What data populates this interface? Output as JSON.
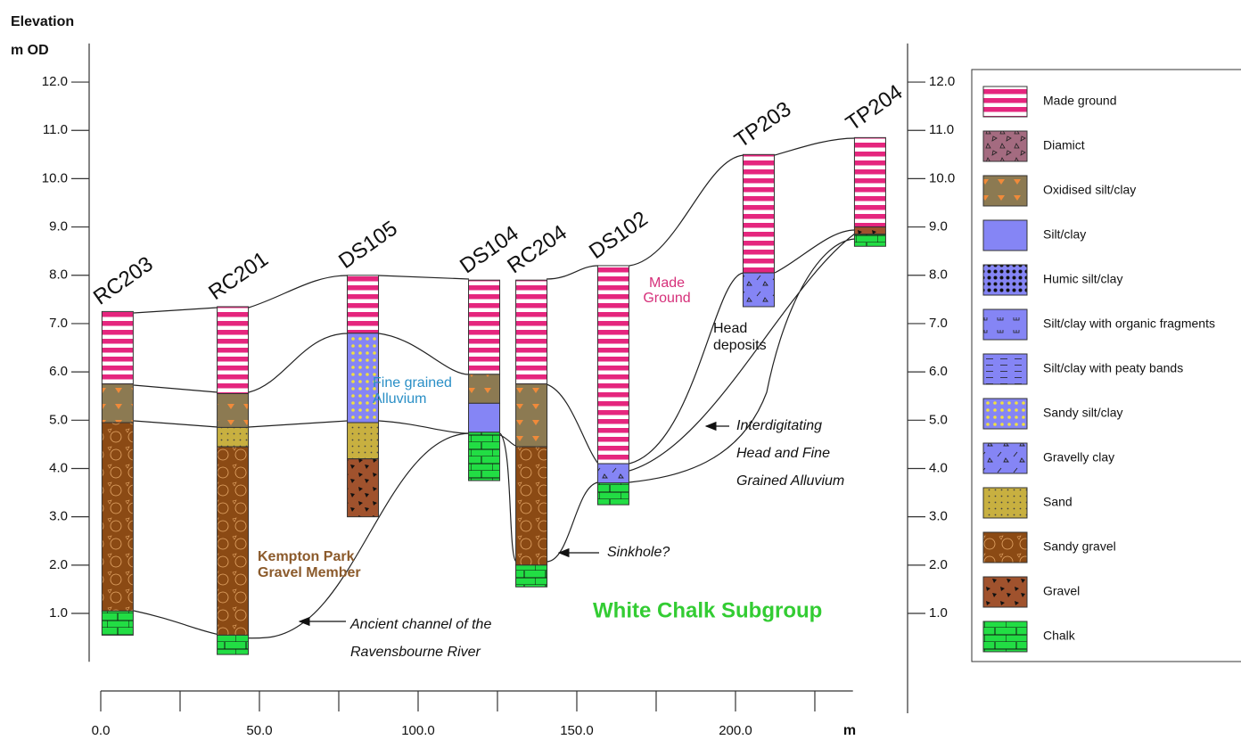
{
  "axis": {
    "y_title": "Elevation",
    "y_unit": "m OD",
    "x_unit": "m",
    "ylim": [
      0,
      12.8
    ],
    "yticks": [
      {
        "value": 1,
        "label": "1.0"
      },
      {
        "value": 2,
        "label": "2.0"
      },
      {
        "value": 3,
        "label": "3.0"
      },
      {
        "value": 4,
        "label": "4.0"
      },
      {
        "value": 5,
        "label": "5.0"
      },
      {
        "value": 6,
        "label": "6.0"
      },
      {
        "value": 7,
        "label": "7.0"
      },
      {
        "value": 8,
        "label": "8.0"
      },
      {
        "value": 9,
        "label": "9.0"
      },
      {
        "value": 10,
        "label": "10.0"
      },
      {
        "value": 11,
        "label": "11.0"
      },
      {
        "value": 12,
        "label": "12.0"
      }
    ],
    "xlim": [
      0,
      237
    ],
    "xticks": [
      {
        "value": 0,
        "label": "0.0"
      },
      {
        "value": 50,
        "label": "50.0"
      },
      {
        "value": 100,
        "label": "100.0"
      },
      {
        "value": 150,
        "label": "150.0"
      },
      {
        "value": 200,
        "label": "200.0"
      }
    ],
    "xminor": [
      25,
      75,
      125,
      175,
      225
    ]
  },
  "boreholes": [
    {
      "name": "RC203",
      "x": 5.3,
      "layers": [
        {
          "top": 7.25,
          "bottom": 5.75,
          "material": "Made ground"
        },
        {
          "top": 5.75,
          "bottom": 4.95,
          "material": "Oxidised silt/clay"
        },
        {
          "top": 4.95,
          "bottom": 1.05,
          "material": "Sandy gravel"
        },
        {
          "top": 1.05,
          "bottom": 0.55,
          "material": "Chalk"
        }
      ]
    },
    {
      "name": "RC201",
      "x": 41.6,
      "layers": [
        {
          "top": 7.35,
          "bottom": 5.55,
          "material": "Made ground"
        },
        {
          "top": 5.55,
          "bottom": 4.85,
          "material": "Oxidised silt/clay"
        },
        {
          "top": 4.85,
          "bottom": 4.45,
          "material": "Sand"
        },
        {
          "top": 4.45,
          "bottom": 0.55,
          "material": "Sandy gravel"
        },
        {
          "top": 0.55,
          "bottom": 0.15,
          "material": "Chalk"
        }
      ]
    },
    {
      "name": "DS105",
      "x": 82.6,
      "layers": [
        {
          "top": 8.0,
          "bottom": 6.8,
          "material": "Made ground"
        },
        {
          "top": 6.8,
          "bottom": 4.95,
          "material": "Sandy silt/clay"
        },
        {
          "top": 4.95,
          "bottom": 4.2,
          "material": "Sand"
        },
        {
          "top": 4.2,
          "bottom": 3.0,
          "material": "Gravel"
        }
      ]
    },
    {
      "name": "DS104",
      "x": 120.8,
      "layers": [
        {
          "top": 7.9,
          "bottom": 5.95,
          "material": "Made ground"
        },
        {
          "top": 5.95,
          "bottom": 5.35,
          "material": "Oxidised silt/clay"
        },
        {
          "top": 5.35,
          "bottom": 4.75,
          "material": "Silt/clay"
        },
        {
          "top": 4.75,
          "bottom": 3.75,
          "material": "Chalk"
        }
      ]
    },
    {
      "name": "RC204",
      "x": 135.7,
      "layers": [
        {
          "top": 7.9,
          "bottom": 5.75,
          "material": "Made ground"
        },
        {
          "top": 5.75,
          "bottom": 4.45,
          "material": "Oxidised silt/clay"
        },
        {
          "top": 4.45,
          "bottom": 2.0,
          "material": "Sandy gravel"
        },
        {
          "top": 2.0,
          "bottom": 1.55,
          "material": "Chalk"
        }
      ]
    },
    {
      "name": "DS102",
      "x": 161.5,
      "layers": [
        {
          "top": 8.2,
          "bottom": 4.1,
          "material": "Made ground"
        },
        {
          "top": 4.1,
          "bottom": 3.7,
          "material": "Gravelly clay"
        },
        {
          "top": 3.7,
          "bottom": 3.25,
          "material": "Chalk"
        }
      ]
    },
    {
      "name": "TP203",
      "x": 207.3,
      "layers": [
        {
          "top": 10.5,
          "bottom": 8.05,
          "material": "Made ground"
        },
        {
          "top": 8.05,
          "bottom": 7.35,
          "material": "Gravelly clay"
        }
      ]
    },
    {
      "name": "TP204",
      "x": 242.4,
      "layers": [
        {
          "top": 10.85,
          "bottom": 9.0,
          "material": "Made ground"
        },
        {
          "top": 9.0,
          "bottom": 8.85,
          "material": "Gravel"
        },
        {
          "top": 8.85,
          "bottom": 8.6,
          "material": "Chalk"
        }
      ]
    }
  ],
  "annotations": {
    "made_ground": [
      "Made",
      "Ground"
    ],
    "head": [
      "Head",
      "deposits"
    ],
    "alluvium": [
      "Fine grained",
      "Alluvium"
    ],
    "kempton": [
      "Kempton Park",
      "Gravel Member"
    ],
    "chalk": "White Chalk Subgroup",
    "channel": [
      "Ancient channel of the",
      "Ravensbourne River"
    ],
    "sinkhole": "Sinkhole?",
    "interdigitating": [
      "Interdigitating",
      "Head and Fine",
      "Grained Alluvium"
    ]
  },
  "legend": {
    "items": [
      "Made ground",
      "Diamict",
      "Oxidised silt/clay",
      "Silt/clay",
      "Humic silt/clay",
      "Silt/clay with organic fragments",
      "Silt/clay with peaty bands",
      "Sandy silt/clay",
      "Gravelly clay",
      "Sand",
      "Sandy gravel",
      "Gravel",
      "Chalk"
    ]
  }
}
